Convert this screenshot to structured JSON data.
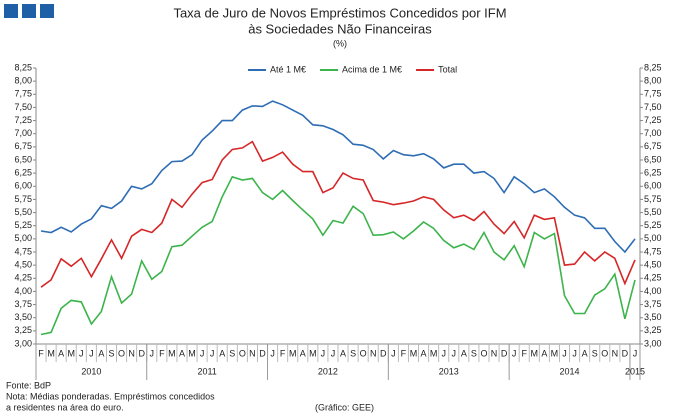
{
  "chart_data": {
    "type": "line",
    "title": "Taxa de Juro de Novos Empréstimos Concedidos por IFM",
    "subtitle": "às Sociedades Não Financeiras",
    "unit": "(%)",
    "categories": [
      "F",
      "M",
      "A",
      "M",
      "J",
      "J",
      "A",
      "S",
      "O",
      "N",
      "D",
      "J",
      "F",
      "M",
      "A",
      "M",
      "J",
      "J",
      "A",
      "S",
      "O",
      "N",
      "D",
      "J",
      "F",
      "M",
      "A",
      "M",
      "J",
      "J",
      "A",
      "S",
      "O",
      "N",
      "D",
      "J",
      "F",
      "M",
      "A",
      "M",
      "J",
      "J",
      "A",
      "S",
      "O",
      "N",
      "D",
      "J",
      "F",
      "M",
      "A",
      "M",
      "J",
      "J",
      "A",
      "S",
      "O",
      "N",
      "D",
      "J"
    ],
    "years": [
      "2010",
      "2011",
      "2012",
      "2013",
      "2014",
      "2015"
    ],
    "series": [
      {
        "name": "Até 1 M€",
        "color": "#2e6db4",
        "values": [
          5.15,
          5.12,
          5.22,
          5.13,
          5.28,
          5.38,
          5.63,
          5.58,
          5.72,
          6.0,
          5.95,
          6.05,
          6.3,
          6.47,
          6.48,
          6.6,
          6.88,
          7.05,
          7.25,
          7.25,
          7.45,
          7.53,
          7.52,
          7.62,
          7.55,
          7.45,
          7.35,
          7.17,
          7.15,
          7.08,
          6.98,
          6.8,
          6.78,
          6.7,
          6.52,
          6.68,
          6.6,
          6.58,
          6.62,
          6.52,
          6.35,
          6.42,
          6.42,
          6.25,
          6.28,
          6.15,
          5.88,
          6.18,
          6.05,
          5.88,
          5.95,
          5.8,
          5.6,
          5.45,
          5.4,
          5.2,
          5.2,
          4.95,
          4.75,
          5.0
        ]
      },
      {
        "name": "Acima de 1 M€",
        "color": "#3cb44b",
        "values": [
          3.18,
          3.22,
          3.68,
          3.83,
          3.8,
          3.38,
          3.62,
          4.28,
          3.78,
          3.95,
          4.58,
          4.23,
          4.38,
          4.85,
          4.88,
          5.05,
          5.22,
          5.33,
          5.8,
          6.18,
          6.12,
          6.15,
          5.88,
          5.75,
          5.92,
          5.73,
          5.55,
          5.38,
          5.07,
          5.35,
          5.3,
          5.62,
          5.48,
          5.07,
          5.08,
          5.13,
          5.0,
          5.15,
          5.32,
          5.2,
          4.97,
          4.83,
          4.9,
          4.8,
          5.12,
          4.75,
          4.6,
          4.87,
          4.47,
          5.12,
          5.0,
          5.1,
          3.92,
          3.58,
          3.58,
          3.93,
          4.05,
          4.33,
          3.48,
          4.22
        ]
      },
      {
        "name": "Total",
        "color": "#d62728",
        "values": [
          4.08,
          4.22,
          4.62,
          4.48,
          4.63,
          4.28,
          4.62,
          4.98,
          4.63,
          5.05,
          5.18,
          5.12,
          5.3,
          5.75,
          5.6,
          5.85,
          6.07,
          6.13,
          6.5,
          6.7,
          6.73,
          6.85,
          6.48,
          6.55,
          6.65,
          6.42,
          6.28,
          6.28,
          5.88,
          5.97,
          6.25,
          6.15,
          6.12,
          5.73,
          5.7,
          5.65,
          5.68,
          5.72,
          5.8,
          5.75,
          5.55,
          5.4,
          5.45,
          5.35,
          5.52,
          5.28,
          5.1,
          5.33,
          5.02,
          5.45,
          5.37,
          5.4,
          4.5,
          4.52,
          4.75,
          4.58,
          4.75,
          4.63,
          4.15,
          4.6
        ]
      }
    ],
    "ylim": [
      3.0,
      8.25
    ],
    "yticks": [
      {
        "value": 3.0,
        "label": "3,00"
      },
      {
        "value": 3.25,
        "label": "3,25"
      },
      {
        "value": 3.5,
        "label": "3,50"
      },
      {
        "value": 3.75,
        "label": "3,75"
      },
      {
        "value": 4.0,
        "label": "4,00"
      },
      {
        "value": 4.25,
        "label": "4,25"
      },
      {
        "value": 4.5,
        "label": "4,50"
      },
      {
        "value": 4.75,
        "label": "4,75"
      },
      {
        "value": 5.0,
        "label": "5,00"
      },
      {
        "value": 5.25,
        "label": "5,25"
      },
      {
        "value": 5.5,
        "label": "5,50"
      },
      {
        "value": 5.75,
        "label": "5,75"
      },
      {
        "value": 6.0,
        "label": "6,00"
      },
      {
        "value": 6.25,
        "label": "6,25"
      },
      {
        "value": 6.5,
        "label": "6,50"
      },
      {
        "value": 6.75,
        "label": "6,75"
      },
      {
        "value": 7.0,
        "label": "7,00"
      },
      {
        "value": 7.25,
        "label": "7,25"
      },
      {
        "value": 7.5,
        "label": "7,50"
      },
      {
        "value": 7.75,
        "label": "7,75"
      },
      {
        "value": 8.0,
        "label": "8,00"
      },
      {
        "value": 8.25,
        "label": "8,25"
      }
    ],
    "y2lim": [
      3.0,
      8.25
    ],
    "y2ticks": [
      {
        "value": 3.0,
        "label": "3,00"
      },
      {
        "value": 3.25,
        "label": "3,25"
      },
      {
        "value": 3.5,
        "label": "3,50"
      },
      {
        "value": 3.75,
        "label": "3,75"
      },
      {
        "value": 4.0,
        "label": "4,00"
      },
      {
        "value": 4.25,
        "label": "4,25"
      },
      {
        "value": 4.5,
        "label": "4,50"
      },
      {
        "value": 4.75,
        "label": "4,75"
      },
      {
        "value": 5.0,
        "label": "5,00"
      },
      {
        "value": 5.25,
        "label": "5,25"
      },
      {
        "value": 5.5,
        "label": "5,50"
      },
      {
        "value": 5.75,
        "label": "5,75"
      },
      {
        "value": 6.0,
        "label": "6,00"
      },
      {
        "value": 6.25,
        "label": "6,25"
      },
      {
        "value": 6.5,
        "label": "6,50"
      },
      {
        "value": 6.75,
        "label": "6,75"
      },
      {
        "value": 7.0,
        "label": "7,00"
      },
      {
        "value": 7.25,
        "label": "7,25"
      },
      {
        "value": 7.5,
        "label": "7,50"
      },
      {
        "value": 7.75,
        "label": "7,75"
      },
      {
        "value": 8.0,
        "label": "8,00"
      },
      {
        "value": 8.25,
        "label": "8,25"
      }
    ],
    "grid": false,
    "legend": "top",
    "notes": [
      "Fonte: BdP",
      "Nota: Médias ponderadas.  Empréstimos concedidos",
      "a residentes na área do euro."
    ],
    "credit": "(Gráfico: GEE)"
  }
}
